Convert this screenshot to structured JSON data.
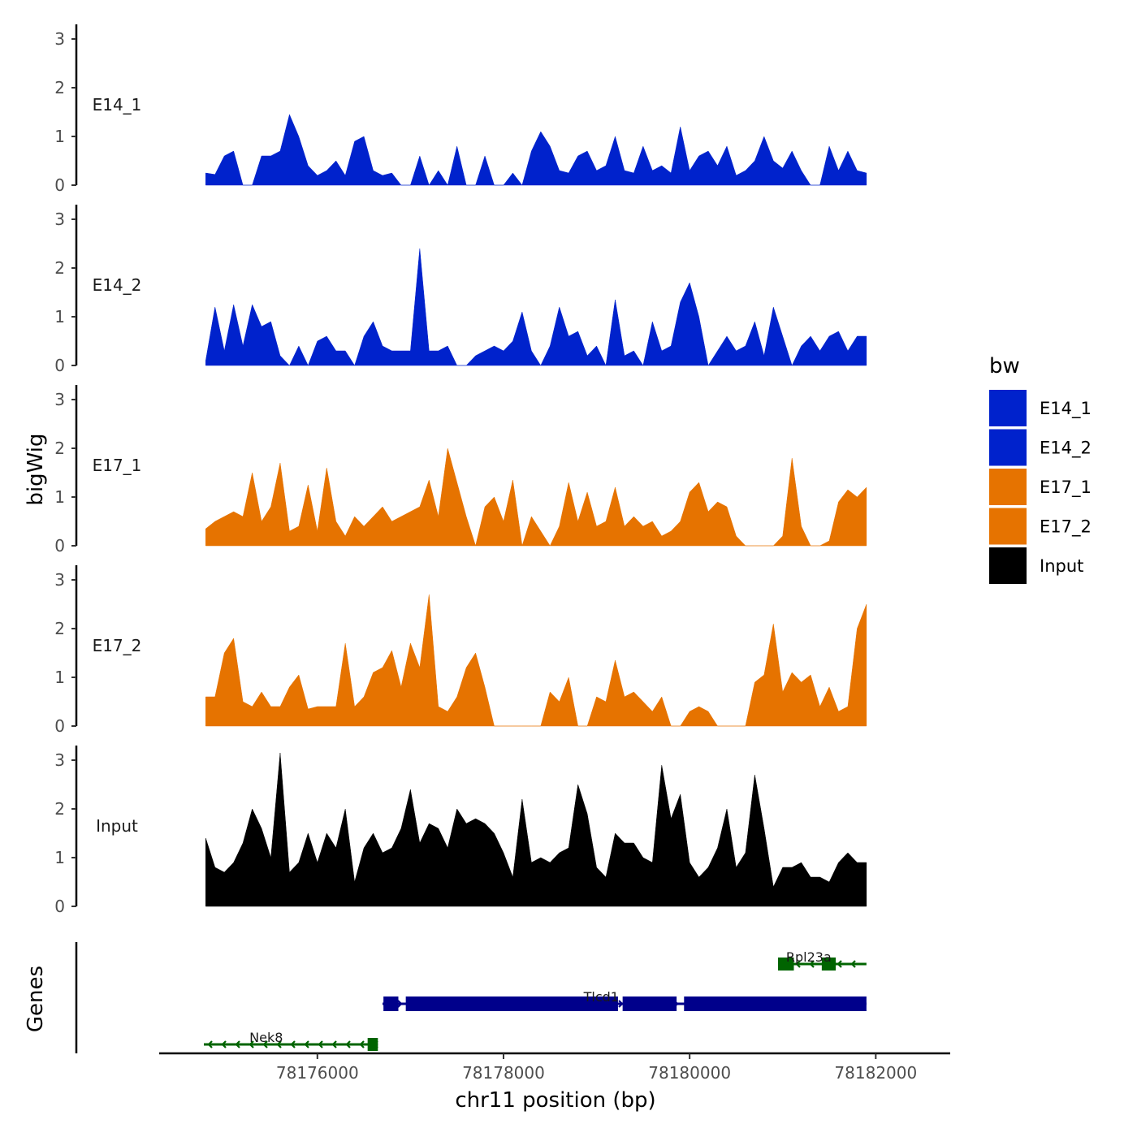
{
  "chart_data": {
    "type": "area",
    "title": "",
    "ylabel": "bigWig",
    "xlabel": "chr11 position (bp)",
    "xlim": [
      78174300,
      78182800
    ],
    "ylim": [
      0,
      3.3
    ],
    "y_ticks": [
      0,
      1,
      2,
      3
    ],
    "x_ticks": [
      78176000,
      78178000,
      78180000,
      78182000
    ],
    "x_tick_labels": [
      "78176000",
      "78178000",
      "78180000",
      "78182000"
    ],
    "legend": {
      "title": "bw",
      "position": "right",
      "entries": [
        {
          "label": "E14_1",
          "color": "#0022cc"
        },
        {
          "label": "E14_2",
          "color": "#0022cc"
        },
        {
          "label": "E17_1",
          "color": "#e67300"
        },
        {
          "label": "E17_2",
          "color": "#e67300"
        },
        {
          "label": "Input",
          "color": "#000000"
        }
      ]
    },
    "series": [
      {
        "name": "E14_1",
        "color": "#0022cc",
        "x": [
          78174800,
          78174900,
          78175000,
          78175100,
          78175200,
          78175300,
          78175400,
          78175500,
          78175600,
          78175700,
          78175800,
          78175900,
          78176000,
          78176100,
          78176200,
          78176300,
          78176400,
          78176500,
          78176600,
          78176700,
          78176800,
          78176900,
          78177000,
          78177100,
          78177200,
          78177300,
          78177400,
          78177500,
          78177600,
          78177700,
          78177800,
          78177900,
          78178000,
          78178100,
          78178200,
          78178300,
          78178400,
          78178500,
          78178600,
          78178700,
          78178800,
          78178900,
          78179000,
          78179100,
          78179200,
          78179300,
          78179400,
          78179500,
          78179600,
          78179700,
          78179800,
          78179900,
          78180000,
          78180100,
          78180200,
          78180300,
          78180400,
          78180500,
          78180600,
          78180700,
          78180800,
          78180900,
          78181000,
          78181100,
          78181200,
          78181300,
          78181400,
          78181500,
          78181600,
          78181700,
          78181800,
          78181900
        ],
        "values": [
          0.25,
          0.22,
          0.6,
          0.7,
          0.0,
          0.0,
          0.6,
          0.6,
          0.7,
          1.45,
          1.0,
          0.4,
          0.2,
          0.3,
          0.5,
          0.2,
          0.9,
          1.0,
          0.3,
          0.2,
          0.25,
          0.0,
          0.0,
          0.6,
          0.0,
          0.3,
          0.0,
          0.8,
          0.0,
          0.0,
          0.6,
          0.0,
          0.0,
          0.25,
          0.0,
          0.7,
          1.1,
          0.8,
          0.3,
          0.25,
          0.6,
          0.7,
          0.3,
          0.4,
          1.0,
          0.3,
          0.25,
          0.8,
          0.3,
          0.4,
          0.25,
          1.2,
          0.3,
          0.6,
          0.7,
          0.4,
          0.8,
          0.2,
          0.3,
          0.5,
          1.0,
          0.5,
          0.35,
          0.7,
          0.3,
          0.0,
          0.0,
          0.8,
          0.3,
          0.7,
          0.3,
          0.25
        ]
      },
      {
        "name": "E14_2",
        "color": "#0022cc",
        "x": [
          78174800,
          78174900,
          78175000,
          78175100,
          78175200,
          78175300,
          78175400,
          78175500,
          78175600,
          78175700,
          78175800,
          78175900,
          78176000,
          78176100,
          78176200,
          78176300,
          78176400,
          78176500,
          78176600,
          78176700,
          78176800,
          78176900,
          78177000,
          78177100,
          78177200,
          78177300,
          78177400,
          78177500,
          78177600,
          78177700,
          78177800,
          78177900,
          78178000,
          78178100,
          78178200,
          78178300,
          78178400,
          78178500,
          78178600,
          78178700,
          78178800,
          78178900,
          78179000,
          78179100,
          78179200,
          78179300,
          78179400,
          78179500,
          78179600,
          78179700,
          78179800,
          78179900,
          78180000,
          78180100,
          78180200,
          78180300,
          78180400,
          78180500,
          78180600,
          78180700,
          78180800,
          78180900,
          78181000,
          78181100,
          78181200,
          78181300,
          78181400,
          78181500,
          78181600,
          78181700,
          78181800,
          78181900
        ],
        "values": [
          0.1,
          1.2,
          0.3,
          1.25,
          0.4,
          1.25,
          0.8,
          0.9,
          0.2,
          0.0,
          0.4,
          0.0,
          0.5,
          0.6,
          0.3,
          0.3,
          0.0,
          0.6,
          0.9,
          0.4,
          0.3,
          0.3,
          0.3,
          2.4,
          0.3,
          0.3,
          0.4,
          0.0,
          0.0,
          0.2,
          0.3,
          0.4,
          0.3,
          0.5,
          1.1,
          0.3,
          0.0,
          0.4,
          1.2,
          0.6,
          0.7,
          0.2,
          0.4,
          0.0,
          1.35,
          0.2,
          0.3,
          0.0,
          0.9,
          0.3,
          0.4,
          1.3,
          1.7,
          1.0,
          0.0,
          0.3,
          0.6,
          0.3,
          0.4,
          0.9,
          0.2,
          1.2,
          0.6,
          0.0,
          0.4,
          0.6,
          0.3,
          0.6,
          0.7,
          0.3,
          0.6,
          0.6
        ]
      },
      {
        "name": "E17_1",
        "color": "#e67300",
        "x": [
          78174800,
          78174900,
          78175000,
          78175100,
          78175200,
          78175300,
          78175400,
          78175500,
          78175600,
          78175700,
          78175800,
          78175900,
          78176000,
          78176100,
          78176200,
          78176300,
          78176400,
          78176500,
          78176600,
          78176700,
          78176800,
          78176900,
          78177000,
          78177100,
          78177200,
          78177300,
          78177400,
          78177500,
          78177600,
          78177700,
          78177800,
          78177900,
          78178000,
          78178100,
          78178200,
          78178300,
          78178400,
          78178500,
          78178600,
          78178700,
          78178800,
          78178900,
          78179000,
          78179100,
          78179200,
          78179300,
          78179400,
          78179500,
          78179600,
          78179700,
          78179800,
          78179900,
          78180000,
          78180100,
          78180200,
          78180300,
          78180400,
          78180500,
          78180600,
          78180700,
          78180800,
          78180900,
          78181000,
          78181100,
          78181200,
          78181300,
          78181400,
          78181500,
          78181600,
          78181700,
          78181800,
          78181900
        ],
        "values": [
          0.35,
          0.5,
          0.6,
          0.7,
          0.6,
          1.5,
          0.5,
          0.8,
          1.7,
          0.3,
          0.4,
          1.25,
          0.3,
          1.6,
          0.5,
          0.2,
          0.6,
          0.4,
          0.6,
          0.8,
          0.5,
          0.6,
          0.7,
          0.8,
          1.35,
          0.6,
          2.0,
          1.3,
          0.6,
          0.0,
          0.8,
          1.0,
          0.5,
          1.35,
          0.0,
          0.6,
          0.3,
          0.0,
          0.4,
          1.3,
          0.5,
          1.1,
          0.4,
          0.5,
          1.2,
          0.4,
          0.6,
          0.4,
          0.5,
          0.2,
          0.3,
          0.5,
          1.1,
          1.3,
          0.7,
          0.9,
          0.8,
          0.2,
          0.0,
          0.0,
          0.0,
          0.0,
          0.2,
          1.8,
          0.4,
          0.0,
          0.0,
          0.1,
          0.9,
          1.15,
          1.0,
          1.2
        ]
      },
      {
        "name": "E17_2",
        "color": "#e67300",
        "x": [
          78174800,
          78174900,
          78175000,
          78175100,
          78175200,
          78175300,
          78175400,
          78175500,
          78175600,
          78175700,
          78175800,
          78175900,
          78176000,
          78176100,
          78176200,
          78176300,
          78176400,
          78176500,
          78176600,
          78176700,
          78176800,
          78176900,
          78177000,
          78177100,
          78177200,
          78177300,
          78177400,
          78177500,
          78177600,
          78177700,
          78177800,
          78177900,
          78178000,
          78178100,
          78178200,
          78178300,
          78178400,
          78178500,
          78178600,
          78178700,
          78178800,
          78178900,
          78179000,
          78179100,
          78179200,
          78179300,
          78179400,
          78179500,
          78179600,
          78179700,
          78179800,
          78179900,
          78180000,
          78180100,
          78180200,
          78180300,
          78180400,
          78180500,
          78180600,
          78180700,
          78180800,
          78180900,
          78181000,
          78181100,
          78181200,
          78181300,
          78181400,
          78181500,
          78181600,
          78181700,
          78181800,
          78181900
        ],
        "values": [
          0.6,
          0.6,
          1.5,
          1.8,
          0.5,
          0.4,
          0.7,
          0.4,
          0.4,
          0.8,
          1.05,
          0.35,
          0.4,
          0.4,
          0.4,
          1.7,
          0.4,
          0.6,
          1.1,
          1.2,
          1.55,
          0.8,
          1.7,
          1.2,
          2.7,
          0.4,
          0.3,
          0.6,
          1.2,
          1.5,
          0.8,
          0.0,
          0.0,
          0.0,
          0.0,
          0.0,
          0.0,
          0.7,
          0.5,
          1.0,
          0.0,
          0.0,
          0.6,
          0.5,
          1.35,
          0.6,
          0.7,
          0.5,
          0.3,
          0.6,
          0.0,
          0.0,
          0.3,
          0.4,
          0.3,
          0.0,
          0.0,
          0.0,
          0.0,
          0.9,
          1.05,
          2.1,
          0.7,
          1.1,
          0.9,
          1.05,
          0.4,
          0.8,
          0.3,
          0.4,
          2.0,
          2.5
        ]
      },
      {
        "name": "Input",
        "color": "#000000",
        "x": [
          78174800,
          78174900,
          78175000,
          78175100,
          78175200,
          78175300,
          78175400,
          78175500,
          78175600,
          78175700,
          78175800,
          78175900,
          78176000,
          78176100,
          78176200,
          78176300,
          78176400,
          78176500,
          78176600,
          78176700,
          78176800,
          78176900,
          78177000,
          78177100,
          78177200,
          78177300,
          78177400,
          78177500,
          78177600,
          78177700,
          78177800,
          78177900,
          78178000,
          78178100,
          78178200,
          78178300,
          78178400,
          78178500,
          78178600,
          78178700,
          78178800,
          78178900,
          78179000,
          78179100,
          78179200,
          78179300,
          78179400,
          78179500,
          78179600,
          78179700,
          78179800,
          78179900,
          78180000,
          78180100,
          78180200,
          78180300,
          78180400,
          78180500,
          78180600,
          78180700,
          78180800,
          78180900,
          78181000,
          78181100,
          78181200,
          78181300,
          78181400,
          78181500,
          78181600,
          78181700,
          78181800,
          78181900
        ],
        "values": [
          1.4,
          0.8,
          0.7,
          0.9,
          1.3,
          2.0,
          1.6,
          1.0,
          3.15,
          0.7,
          0.9,
          1.5,
          0.9,
          1.5,
          1.2,
          2.0,
          0.5,
          1.2,
          1.5,
          1.1,
          1.2,
          1.6,
          2.4,
          1.3,
          1.7,
          1.6,
          1.2,
          2.0,
          1.7,
          1.8,
          1.7,
          1.5,
          1.1,
          0.6,
          2.2,
          0.9,
          1.0,
          0.9,
          1.1,
          1.2,
          2.5,
          1.9,
          0.8,
          0.6,
          1.5,
          1.3,
          1.3,
          1.0,
          0.9,
          2.9,
          1.8,
          2.3,
          0.9,
          0.6,
          0.8,
          1.2,
          2.0,
          0.8,
          1.1,
          2.7,
          1.6,
          0.4,
          0.8,
          0.8,
          0.9,
          0.6,
          0.6,
          0.5,
          0.9,
          1.1,
          0.9,
          0.9
        ]
      }
    ],
    "genes": {
      "title": "Genes",
      "items": [
        {
          "name": "Rpl23a",
          "strand": "-",
          "color": "#006400",
          "start": 78180950,
          "end": 78181900,
          "exons": [
            [
              78180950,
              78181120
            ],
            [
              78181420,
              78181570
            ]
          ]
        },
        {
          "name": "Tlcd1",
          "strand": "+",
          "color": "#00008b",
          "start": 78176700,
          "end": 78181900,
          "exons": [
            [
              78176710,
              78176870
            ],
            [
              78176950,
              78179230
            ],
            [
              78179280,
              78179860
            ],
            [
              78179940,
              78181900
            ]
          ]
        },
        {
          "name": "Nek8",
          "strand": "-",
          "color": "#006400",
          "start": 78174780,
          "end": 78176650,
          "exons": [
            [
              78176540,
              78176650
            ]
          ]
        }
      ]
    }
  }
}
